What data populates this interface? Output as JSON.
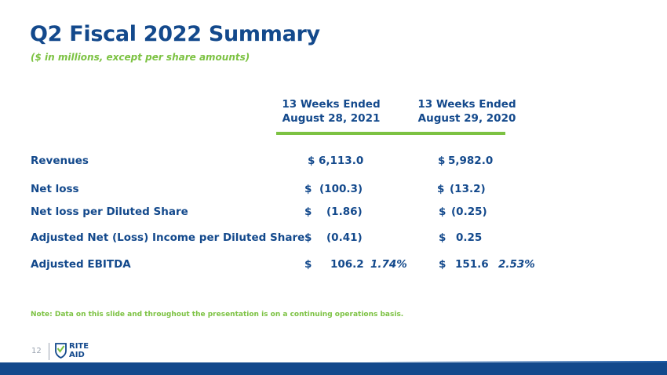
{
  "header": {
    "title": "Q2 Fiscal 2022 Summary",
    "subtitle": "($ in millions, except per share amounts)"
  },
  "columns": [
    {
      "line1": "13 Weeks Ended",
      "line2": "August 28, 2021"
    },
    {
      "line1": "13 Weeks Ended",
      "line2": "August 29, 2020"
    }
  ],
  "rows": [
    {
      "label": "Revenues",
      "c1_sym": "$",
      "c1_val": "6,113.0",
      "c1_pct": "",
      "c2_sym": "$",
      "c2_val": "5,982.0",
      "c2_pct": ""
    },
    {
      "label": "Net loss",
      "c1_sym": "$",
      "c1_val": "(100.3)",
      "c1_pct": "",
      "c2_sym": "$",
      "c2_val": "(13.2)",
      "c2_pct": ""
    },
    {
      "label": "Net loss per Diluted Share",
      "c1_sym": "$",
      "c1_val": "(1.86)",
      "c1_pct": "",
      "c2_sym": "$",
      "c2_val": "(0.25)",
      "c2_pct": ""
    },
    {
      "label": "Adjusted Net (Loss) Income per Diluted Share",
      "c1_sym": "$",
      "c1_val": "(0.41)",
      "c1_pct": "",
      "c2_sym": "$",
      "c2_val": "0.25",
      "c2_pct": ""
    },
    {
      "label": "Adjusted EBITDA",
      "c1_sym": "$",
      "c1_val": "106.2",
      "c1_pct": "1.74%",
      "c2_sym": "$",
      "c2_val": "151.6",
      "c2_pct": "2.53%"
    }
  ],
  "note": "Note:  Data on this slide and throughout the presentation is on a continuing operations basis.",
  "footer": {
    "page_number": "12",
    "logo_line1": "RITE",
    "logo_line2": "AID"
  },
  "colors": {
    "primary_blue": "#13498c",
    "accent_green": "#7cc242"
  }
}
